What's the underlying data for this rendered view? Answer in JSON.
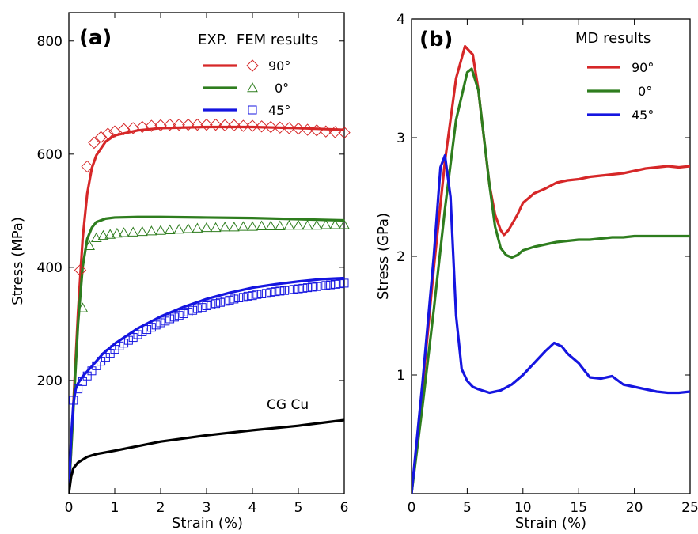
{
  "chart_data": [
    {
      "type": "line",
      "panel_label": "(a)",
      "xlabel": "Strain (%)",
      "ylabel": "Stress (MPa)",
      "xlim": [
        0,
        6
      ],
      "ylim": [
        0,
        850
      ],
      "xticks": [
        0,
        1,
        2,
        3,
        4,
        5,
        6
      ],
      "yticks": [
        200,
        400,
        600,
        800
      ],
      "legend_header": "EXP.  FEM results",
      "legend_placement": "top-right",
      "annotation": "CG Cu",
      "series": [
        {
          "name": "90°",
          "kind": "line",
          "color": "#d62728",
          "x": [
            0,
            0.1,
            0.2,
            0.3,
            0.4,
            0.5,
            0.6,
            0.8,
            1.0,
            1.5,
            2.0,
            3.0,
            4.0,
            5.0,
            6.0
          ],
          "y": [
            0,
            160,
            320,
            450,
            530,
            575,
            598,
            622,
            633,
            642,
            646,
            648,
            648,
            646,
            643
          ]
        },
        {
          "name": "90°",
          "kind": "marker",
          "marker": "diamond",
          "color": "#d62728",
          "x": [
            0.25,
            0.4,
            0.55,
            0.7,
            0.85,
            1.0,
            1.2,
            1.4,
            1.6,
            1.8,
            2.0,
            2.2,
            2.4,
            2.6,
            2.8,
            3.0,
            3.2,
            3.4,
            3.6,
            3.8,
            4.0,
            4.2,
            4.4,
            4.6,
            4.8,
            5.0,
            5.2,
            5.4,
            5.6,
            5.8,
            6.0
          ],
          "y": [
            395,
            578,
            620,
            630,
            636,
            640,
            644,
            646,
            648,
            650,
            651,
            652,
            652,
            652,
            652,
            652,
            652,
            651,
            651,
            650,
            650,
            649,
            648,
            647,
            646,
            645,
            643,
            642,
            640,
            639,
            638
          ]
        },
        {
          "name": "0°",
          "kind": "line",
          "color": "#2e7d1e",
          "x": [
            0,
            0.1,
            0.2,
            0.3,
            0.4,
            0.5,
            0.6,
            0.8,
            1.0,
            1.5,
            2.0,
            3.0,
            4.0,
            5.0,
            6.0
          ],
          "y": [
            0,
            150,
            300,
            400,
            450,
            470,
            480,
            486,
            488,
            489,
            489,
            488,
            487,
            485,
            483
          ]
        },
        {
          "name": "0°",
          "kind": "marker",
          "marker": "triangle",
          "color": "#2e7d1e",
          "x": [
            0.3,
            0.45,
            0.6,
            0.75,
            0.9,
            1.05,
            1.2,
            1.4,
            1.6,
            1.8,
            2.0,
            2.2,
            2.4,
            2.6,
            2.8,
            3.0,
            3.2,
            3.4,
            3.6,
            3.8,
            4.0,
            4.2,
            4.4,
            4.6,
            4.8,
            5.0,
            5.2,
            5.4,
            5.6,
            5.8,
            6.0
          ],
          "y": [
            328,
            438,
            452,
            456,
            458,
            460,
            461,
            462,
            463,
            464,
            465,
            466,
            467,
            468,
            469,
            470,
            470,
            471,
            471,
            472,
            472,
            473,
            473,
            473,
            474,
            474,
            474,
            474,
            475,
            475,
            475
          ]
        },
        {
          "name": "45°",
          "kind": "line",
          "color": "#1515e0",
          "x": [
            0,
            0.05,
            0.1,
            0.15,
            0.2,
            0.3,
            0.5,
            0.75,
            1.0,
            1.5,
            2.0,
            2.5,
            3.0,
            3.5,
            4.0,
            4.5,
            5.0,
            5.5,
            6.0
          ],
          "y": [
            0,
            100,
            160,
            185,
            195,
            207,
            225,
            248,
            265,
            292,
            313,
            330,
            344,
            355,
            364,
            370,
            375,
            379,
            381
          ]
        },
        {
          "name": "45°",
          "kind": "marker",
          "marker": "square",
          "color": "#1515e0",
          "x": [
            0.1,
            0.2,
            0.3,
            0.4,
            0.5,
            0.6,
            0.7,
            0.8,
            0.9,
            1.0,
            1.1,
            1.2,
            1.3,
            1.4,
            1.5,
            1.6,
            1.7,
            1.8,
            1.9,
            2.0,
            2.1,
            2.2,
            2.3,
            2.4,
            2.5,
            2.6,
            2.7,
            2.8,
            2.9,
            3.0,
            3.1,
            3.2,
            3.3,
            3.4,
            3.5,
            3.6,
            3.7,
            3.8,
            3.9,
            4.0,
            4.1,
            4.2,
            4.3,
            4.4,
            4.5,
            4.6,
            4.7,
            4.8,
            4.9,
            5.0,
            5.1,
            5.2,
            5.3,
            5.4,
            5.5,
            5.6,
            5.7,
            5.8,
            5.9,
            6.0
          ],
          "y": [
            165,
            185,
            198,
            208,
            217,
            226,
            234,
            241,
            248,
            255,
            261,
            266,
            271,
            276,
            281,
            286,
            290,
            294,
            298,
            302,
            305,
            309,
            312,
            315,
            318,
            321,
            324,
            327,
            329,
            332,
            334,
            336,
            338,
            340,
            342,
            344,
            346,
            347,
            349,
            350,
            352,
            353,
            354,
            356,
            357,
            358,
            359,
            360,
            361,
            362,
            363,
            364,
            365,
            366,
            367,
            368,
            369,
            370,
            371,
            372
          ]
        },
        {
          "name": "CG Cu",
          "kind": "line",
          "color": "#000000",
          "x": [
            0,
            0.05,
            0.1,
            0.2,
            0.4,
            0.6,
            1.0,
            1.5,
            2.0,
            3.0,
            4.0,
            5.0,
            6.0
          ],
          "y": [
            0,
            30,
            45,
            55,
            65,
            70,
            76,
            84,
            92,
            103,
            112,
            120,
            130
          ]
        }
      ]
    },
    {
      "type": "line",
      "panel_label": "(b)",
      "xlabel": "Strain (%)",
      "ylabel": "Stress (GPa)",
      "xlim": [
        0,
        25
      ],
      "ylim": [
        0,
        4
      ],
      "xticks": [
        0,
        5,
        10,
        15,
        20,
        25
      ],
      "yticks": [
        1,
        2,
        3,
        4
      ],
      "legend_header": "MD results",
      "legend_placement": "top-right",
      "series": [
        {
          "name": "90°",
          "color": "#d62728",
          "x": [
            0,
            1,
            2,
            3,
            4,
            4.8,
            5.5,
            6,
            6.5,
            7,
            7.5,
            8,
            8.3,
            8.7,
            9.5,
            10,
            11,
            12,
            13,
            14,
            15,
            16,
            17,
            18,
            19,
            20,
            21,
            22,
            23,
            24,
            25
          ],
          "y": [
            0,
            0.9,
            1.9,
            2.8,
            3.5,
            3.77,
            3.7,
            3.4,
            3.0,
            2.6,
            2.35,
            2.22,
            2.18,
            2.22,
            2.35,
            2.45,
            2.53,
            2.57,
            2.62,
            2.64,
            2.65,
            2.67,
            2.68,
            2.69,
            2.7,
            2.72,
            2.74,
            2.75,
            2.76,
            2.75,
            2.76
          ]
        },
        {
          "name": "0°",
          "color": "#2e7d1e",
          "x": [
            0,
            1,
            2,
            3,
            4,
            5,
            5.4,
            6,
            6.5,
            7,
            7.5,
            8,
            8.5,
            9,
            9.5,
            10,
            11,
            12,
            13,
            14,
            15,
            16,
            17,
            18,
            19,
            20,
            21,
            22,
            23,
            24,
            25
          ],
          "y": [
            0,
            0.75,
            1.55,
            2.4,
            3.15,
            3.55,
            3.58,
            3.4,
            3.0,
            2.6,
            2.25,
            2.07,
            2.01,
            1.99,
            2.01,
            2.05,
            2.08,
            2.1,
            2.12,
            2.13,
            2.14,
            2.14,
            2.15,
            2.16,
            2.16,
            2.17,
            2.17,
            2.17,
            2.17,
            2.17,
            2.17
          ]
        },
        {
          "name": "45°",
          "color": "#1515e0",
          "x": [
            0,
            1,
            2,
            2.6,
            3,
            3.5,
            4,
            4.5,
            5,
            5.5,
            6,
            7,
            8,
            9,
            10,
            11,
            12,
            12.8,
            13.5,
            14,
            15,
            16,
            17,
            18,
            19,
            20,
            21,
            22,
            23,
            24,
            25
          ],
          "y": [
            0,
            0.95,
            2.0,
            2.75,
            2.85,
            2.5,
            1.5,
            1.05,
            0.95,
            0.9,
            0.88,
            0.85,
            0.87,
            0.92,
            1.0,
            1.1,
            1.2,
            1.27,
            1.24,
            1.18,
            1.1,
            0.98,
            0.97,
            0.99,
            0.92,
            0.9,
            0.88,
            0.86,
            0.85,
            0.85,
            0.86
          ]
        }
      ]
    }
  ]
}
